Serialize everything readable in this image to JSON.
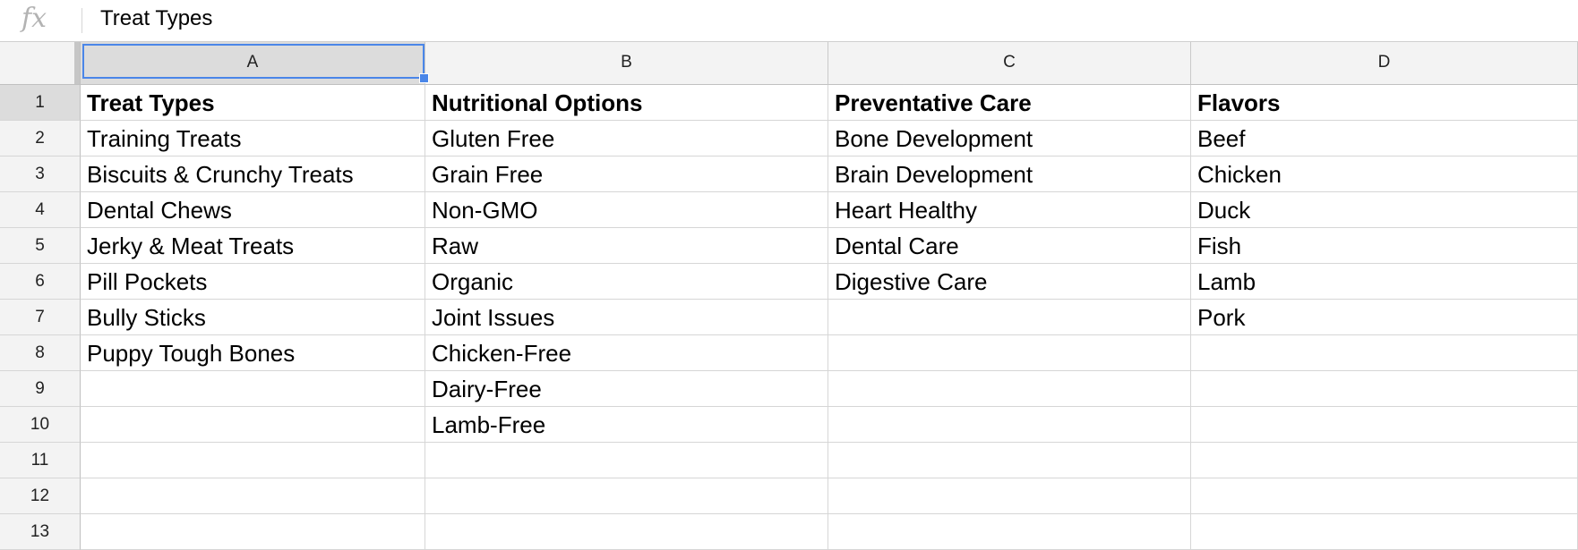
{
  "formula_bar": {
    "fx_label": "fx",
    "value": "Treat Types"
  },
  "columns": [
    "A",
    "B",
    "C",
    "D"
  ],
  "rows": [
    "1",
    "2",
    "3",
    "4",
    "5",
    "6",
    "7",
    "8",
    "9",
    "10",
    "11",
    "12",
    "13"
  ],
  "cells": {
    "A": [
      "Treat Types",
      "Training Treats",
      "Biscuits & Crunchy Treats",
      "Dental Chews",
      "Jerky & Meat Treats",
      "Pill Pockets",
      "Bully Sticks",
      "Puppy Tough Bones",
      "",
      "",
      "",
      "",
      ""
    ],
    "B": [
      "Nutritional Options",
      "Gluten Free",
      "Grain Free",
      "Non-GMO",
      "Raw",
      "Organic",
      "Joint Issues",
      "Chicken-Free",
      "Dairy-Free",
      "Lamb-Free",
      "",
      "",
      ""
    ],
    "C": [
      "Preventative Care",
      "Bone Development",
      "Brain Development",
      "Heart Healthy",
      "Dental Care",
      "Digestive Care",
      "",
      "",
      "",
      "",
      "",
      "",
      ""
    ],
    "D": [
      "Flavors",
      "Beef",
      "Chicken",
      "Duck",
      "Fish",
      "Lamb",
      "Pork",
      "",
      "",
      "",
      "",
      "",
      ""
    ]
  },
  "selection": {
    "active_cell": "A1",
    "accent_color": "#4a86e8"
  }
}
